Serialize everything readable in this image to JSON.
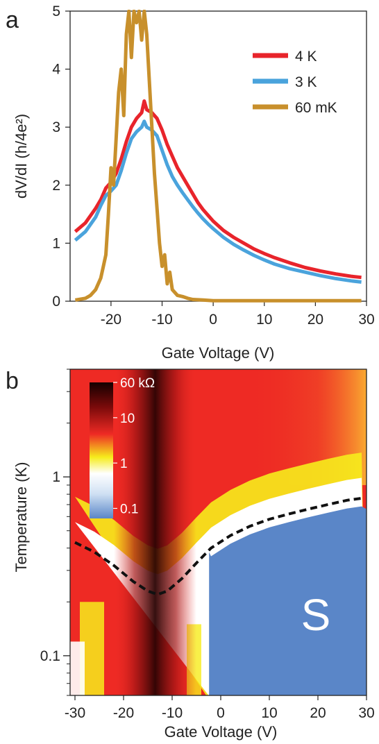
{
  "panel_a": {
    "label": "a",
    "chart_data": {
      "type": "line",
      "xlabel": "Gate Voltage (V)",
      "ylabel": "dV/dI (h/4e²)",
      "xlim": [
        -28,
        30
      ],
      "ylim": [
        0,
        5
      ],
      "xticks": [
        -20,
        -10,
        0,
        10,
        20,
        30
      ],
      "yticks": [
        0,
        1,
        2,
        3,
        4,
        5
      ],
      "legend_position": "top-right",
      "series": [
        {
          "name": "4 K",
          "color": "#e8242b",
          "x": [
            -27,
            -25,
            -23,
            -22,
            -21,
            -20,
            -19,
            -18,
            -17,
            -16,
            -15,
            -14,
            -13.5,
            -13,
            -12,
            -11,
            -10,
            -9,
            -8,
            -7,
            -6,
            -5,
            -4,
            -3,
            -2,
            -1,
            0,
            2,
            4,
            6,
            8,
            10,
            12,
            15,
            18,
            21,
            24,
            27,
            29
          ],
          "y": [
            1.2,
            1.35,
            1.6,
            1.75,
            1.95,
            2.05,
            2.2,
            2.45,
            2.75,
            3.0,
            3.15,
            3.25,
            3.45,
            3.3,
            3.25,
            3.15,
            2.95,
            2.7,
            2.5,
            2.3,
            2.15,
            2.0,
            1.85,
            1.7,
            1.58,
            1.48,
            1.38,
            1.22,
            1.1,
            1.0,
            0.9,
            0.82,
            0.75,
            0.66,
            0.58,
            0.52,
            0.47,
            0.43,
            0.41
          ]
        },
        {
          "name": "3 K",
          "color": "#4aa3dc",
          "x": [
            -27,
            -25,
            -23,
            -22,
            -21,
            -20,
            -19,
            -18,
            -17,
            -16,
            -15,
            -14,
            -13.5,
            -13,
            -12,
            -11,
            -10,
            -9,
            -8,
            -7,
            -6,
            -5,
            -4,
            -3,
            -2,
            -1,
            0,
            2,
            4,
            6,
            8,
            10,
            12,
            15,
            18,
            21,
            24,
            27,
            29
          ],
          "y": [
            1.05,
            1.2,
            1.45,
            1.65,
            1.82,
            1.9,
            2.0,
            2.25,
            2.55,
            2.8,
            2.92,
            3.0,
            3.1,
            3.0,
            2.95,
            2.85,
            2.6,
            2.35,
            2.15,
            2.0,
            1.87,
            1.75,
            1.63,
            1.52,
            1.42,
            1.33,
            1.25,
            1.1,
            0.98,
            0.88,
            0.79,
            0.71,
            0.64,
            0.56,
            0.5,
            0.44,
            0.39,
            0.35,
            0.33
          ]
        },
        {
          "name": "60 mK",
          "color": "#c8902c",
          "x": [
            -27,
            -25,
            -24,
            -23,
            -22,
            -21.5,
            -21,
            -20.5,
            -20,
            -19.5,
            -19,
            -18.5,
            -18,
            -17.5,
            -17,
            -16.5,
            -16,
            -15.5,
            -15,
            -14.5,
            -14,
            -13.5,
            -13,
            -12.5,
            -12,
            -11.5,
            -11,
            -10.5,
            -10,
            -9.5,
            -9,
            -8.5,
            -8,
            -7,
            -6,
            -5,
            -4,
            -2,
            0,
            5,
            10,
            15,
            20,
            25,
            29
          ],
          "y": [
            0.02,
            0.05,
            0.1,
            0.2,
            0.4,
            0.6,
            0.8,
            1.5,
            2.3,
            2.0,
            2.8,
            3.6,
            4.0,
            3.2,
            4.6,
            5.0,
            4.2,
            5.0,
            4.8,
            5.0,
            4.5,
            5.0,
            4.6,
            3.8,
            3.0,
            2.2,
            1.6,
            1.0,
            0.6,
            0.8,
            0.3,
            0.5,
            0.2,
            0.1,
            0.08,
            0.05,
            0.03,
            0.02,
            0.01,
            0.01,
            0.01,
            0.01,
            0.01,
            0.01,
            0.01
          ]
        }
      ]
    }
  },
  "panel_b": {
    "label": "b",
    "chart_data": {
      "type": "heatmap",
      "xlabel": "Gate Voltage (V)",
      "ylabel": "Temperature (K)",
      "xlim": [
        -31,
        30
      ],
      "ylim": [
        0.06,
        4
      ],
      "yscale": "log",
      "xticks": [
        -30,
        -20,
        -10,
        0,
        10,
        20,
        30
      ],
      "ytick_labels": [
        "0.1",
        "1"
      ],
      "ytick_values": [
        0.1,
        1
      ],
      "colorbar": {
        "scale": "log",
        "range": [
          0.06,
          60
        ],
        "tick_labels": [
          "60 kΩ",
          "10",
          "1",
          "0.1"
        ],
        "tick_values": [
          60,
          10,
          1,
          0.1
        ],
        "position": "top-left inset",
        "stops": [
          "#5a86c8",
          "#ffffff",
          "#f6ec1c",
          "#ee2a24",
          "#140000"
        ]
      },
      "boundary_line": {
        "style": "dashed",
        "color": "#111111",
        "x": [
          -30,
          -26,
          -22,
          -18,
          -15,
          -13,
          -11,
          -8,
          -5,
          -2,
          2,
          6,
          10,
          14,
          18,
          22,
          26,
          29
        ],
        "y": [
          0.43,
          0.38,
          0.32,
          0.26,
          0.23,
          0.22,
          0.23,
          0.27,
          0.33,
          0.4,
          0.47,
          0.53,
          0.58,
          0.62,
          0.66,
          0.7,
          0.74,
          0.76
        ]
      },
      "annotation": "S"
    }
  }
}
